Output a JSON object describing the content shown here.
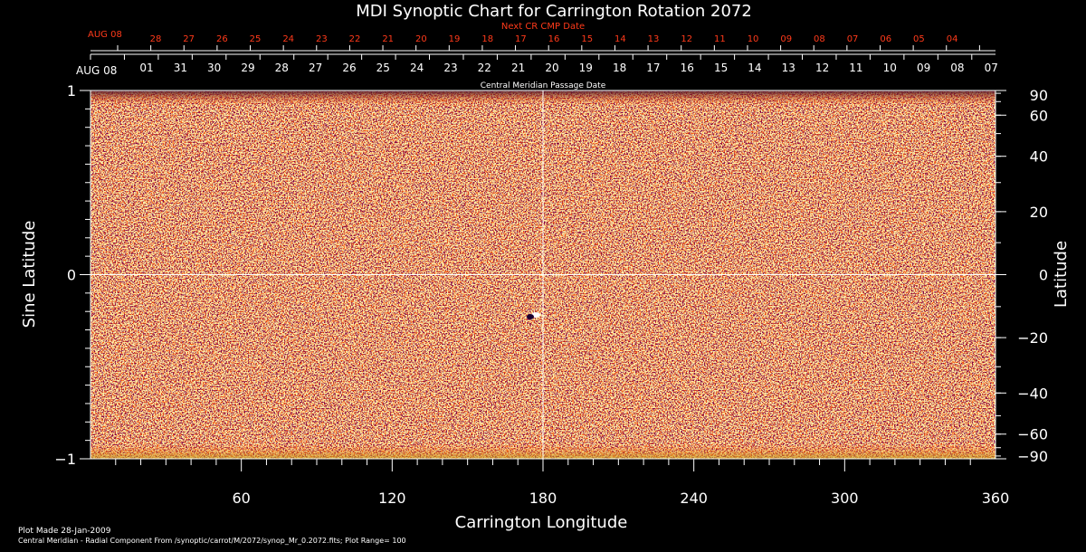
{
  "chart_data": {
    "type": "heatmap",
    "title": "MDI Synoptic Chart for Carrington Rotation 2072",
    "xlabel": "Carrington Longitude",
    "ylabel_left": "Sine Latitude",
    "ylabel_right": "Latitude",
    "xlim": [
      0,
      360
    ],
    "ylim": [
      -1,
      1
    ],
    "x_ticks": [
      60,
      120,
      180,
      240,
      300,
      360
    ],
    "y_ticks_left": [
      {
        "value": 1,
        "label": "1"
      },
      {
        "value": 0,
        "label": "0"
      },
      {
        "value": -1,
        "label": "−1"
      }
    ],
    "y_ticks_right": [
      {
        "lat": 90,
        "label": "90"
      },
      {
        "lat": 60,
        "label": "60"
      },
      {
        "lat": 40,
        "label": "40"
      },
      {
        "lat": 20,
        "label": "20"
      },
      {
        "lat": 0,
        "label": "0"
      },
      {
        "lat": -20,
        "label": "−20"
      },
      {
        "lat": -40,
        "label": "−40"
      },
      {
        "lat": -60,
        "label": "−60"
      },
      {
        "lat": -90,
        "label": "−90"
      }
    ],
    "cmp_axis": {
      "label": "Central Meridian Passage Date",
      "first_label": "AUG 08",
      "dates": [
        "01",
        "31",
        "30",
        "29",
        "28",
        "27",
        "26",
        "25",
        "24",
        "23",
        "22",
        "21",
        "20",
        "19",
        "18",
        "17",
        "16",
        "15",
        "14",
        "13",
        "12",
        "11",
        "10",
        "09",
        "08",
        "07"
      ]
    },
    "next_cr_axis": {
      "label": "Next CR CMP Date",
      "first_label": "AUG 08",
      "dates": [
        "28",
        "27",
        "26",
        "25",
        "24",
        "23",
        "22",
        "21",
        "20",
        "19",
        "18",
        "17",
        "16",
        "15",
        "14",
        "13",
        "12",
        "11",
        "10",
        "09",
        "08",
        "07",
        "06",
        "05",
        "04"
      ]
    },
    "reference_lines": [
      {
        "axis": "x",
        "value": 180
      },
      {
        "axis": "y",
        "value": 0
      }
    ],
    "colors": {
      "background": "#000000",
      "field_base": "#ff5a10",
      "field_dark": "#3a0010",
      "field_bright": "#ffe070",
      "next_cr_text": "#ff3a1a"
    },
    "footer": {
      "plot_made": "Plot Made 28-Jan-2009",
      "source": "Central Meridian - Radial Component From /synoptic/carrot/M/2072/synop_Mr_0.2072.fits; Plot Range=  100"
    }
  }
}
